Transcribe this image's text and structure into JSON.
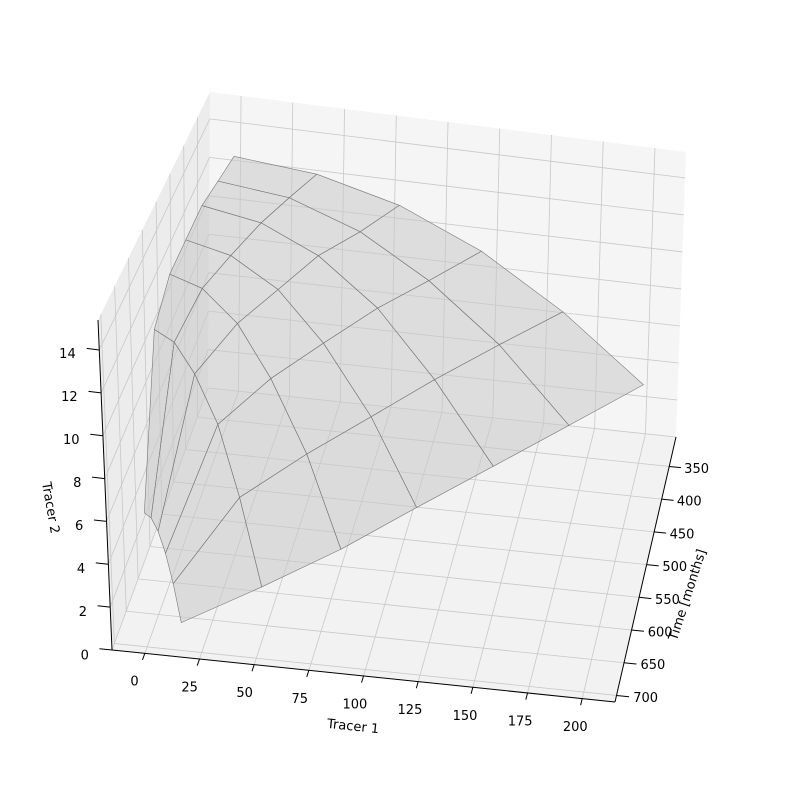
{
  "chart_data": {
    "type": "surface3d",
    "xlabel": "Tracer 1",
    "ylabel": "Time [months]",
    "zlabel": "Tracer 2",
    "xlim": [
      -15,
      215
    ],
    "ylim": [
      305,
      710
    ],
    "zlim": [
      0,
      15.4
    ],
    "xticks": [
      0,
      25,
      50,
      75,
      100,
      125,
      150,
      175,
      200
    ],
    "yticks": [
      350,
      400,
      450,
      500,
      550,
      600,
      650,
      700
    ],
    "zticks": [
      0,
      2,
      4,
      6,
      8,
      10,
      12,
      14
    ],
    "grid": true,
    "color": "#c8c8c8",
    "surface": {
      "y": [
        330,
        390,
        450,
        510,
        570,
        630,
        690
      ],
      "x": [
        [
          0,
          40,
          80,
          120,
          160,
          200
        ],
        [
          0,
          34,
          68,
          101,
          135,
          169
        ],
        [
          0,
          28,
          55,
          83,
          110,
          138
        ],
        [
          0,
          21,
          43,
          64,
          86,
          107
        ],
        [
          0,
          15,
          31,
          46,
          62,
          77
        ],
        [
          0,
          9,
          18,
          28,
          37,
          46
        ],
        [
          0,
          3,
          6,
          9,
          12,
          15
        ]
      ],
      "z": [
        [
          13,
          12.6,
          11.5,
          9.6,
          6.9,
          3.5
        ],
        [
          13.5,
          13.1,
          11.8,
          9.7,
          6.8,
          3
        ],
        [
          14,
          13.5,
          12.2,
          9.9,
          6.6,
          2.5
        ],
        [
          14,
          13.5,
          12.1,
          9.7,
          6.3,
          2
        ],
        [
          14,
          13.5,
          12,
          9.5,
          6,
          1.5
        ],
        [
          13,
          12.5,
          11.1,
          8.8,
          5.4,
          1.2
        ],
        [
          6,
          5.8,
          5.2,
          4.2,
          2.8,
          1
        ]
      ]
    }
  }
}
